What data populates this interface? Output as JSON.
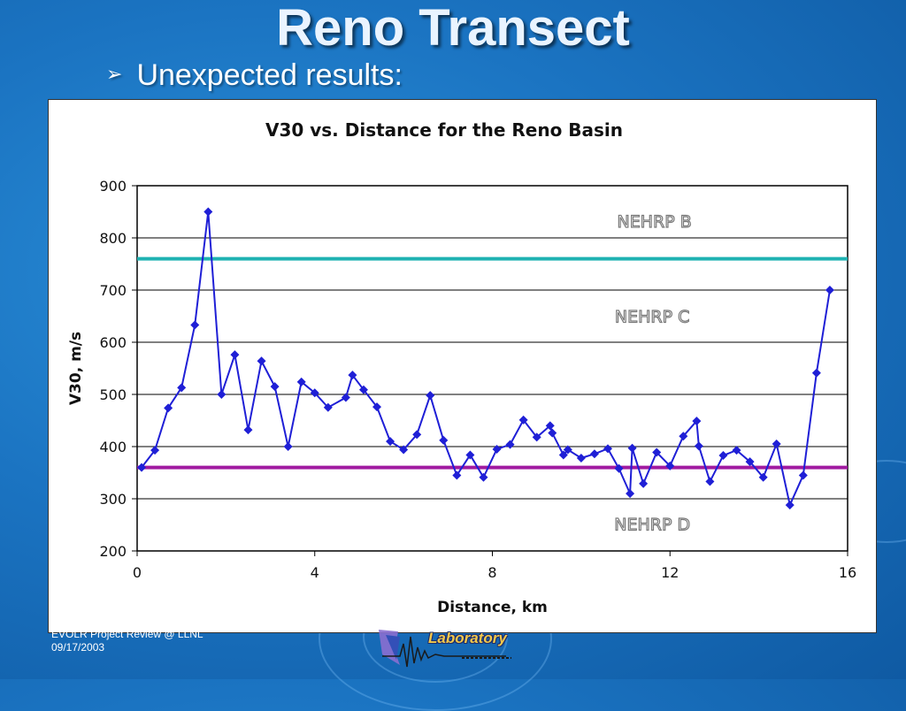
{
  "slide": {
    "title": "Reno Transect",
    "bullet": "Unexpected results:",
    "footer_line1": "EVOLR Project Review @ LLNL",
    "footer_line2": "09/17/2003",
    "logo_text": "Laboratory"
  },
  "colors": {
    "series": "#1f1fd6",
    "nehrp_b_c_line": "#1fb2b2",
    "nehrp_c_d_line": "#a01aa0",
    "zone_label": "#7a7a7a"
  },
  "chart_data": {
    "type": "line",
    "title": "V30 vs. Distance for the Reno Basin",
    "xlabel": "Distance, km",
    "ylabel": "V30, m/s",
    "xlim": [
      0,
      16
    ],
    "ylim": [
      200,
      900
    ],
    "xticks": [
      0,
      4,
      8,
      12,
      16
    ],
    "yticks": [
      200,
      300,
      400,
      500,
      600,
      700,
      800,
      900
    ],
    "grid": "horizontal",
    "series": [
      {
        "x": [
          0.1,
          0.4,
          0.7,
          1.0,
          1.3,
          1.6,
          1.9,
          2.2,
          2.5,
          2.8,
          3.1,
          3.4,
          3.7,
          4.0,
          4.3,
          4.7,
          4.85,
          5.1,
          5.4,
          5.7,
          6.0,
          6.3,
          6.6,
          6.9,
          7.2,
          7.5,
          7.8,
          8.1,
          8.4,
          8.7,
          9.0,
          9.3,
          9.35,
          9.6,
          9.7,
          10.0,
          10.3,
          10.6,
          10.85,
          11.1,
          11.15,
          11.4,
          11.7,
          12.0,
          12.3,
          12.6,
          12.65,
          12.9,
          13.2,
          13.5,
          13.8,
          14.1,
          14.4,
          14.7,
          15.0,
          15.3,
          15.6
        ],
        "values": [
          360,
          393,
          474,
          513,
          633,
          850,
          500,
          576,
          432,
          564,
          515,
          400,
          524,
          503,
          475,
          494,
          537,
          509,
          476,
          410,
          394,
          423,
          498,
          412,
          345,
          384,
          341,
          395,
          404,
          451,
          418,
          440,
          426,
          384,
          394,
          378,
          386,
          396,
          358,
          310,
          397,
          329,
          389,
          363,
          420,
          449,
          401,
          333,
          383,
          393,
          371,
          341,
          405,
          288,
          345,
          541,
          700
        ]
      }
    ],
    "reference_lines": [
      {
        "y": 760,
        "name": "NEHRP B/C boundary"
      },
      {
        "y": 360,
        "name": "NEHRP C/D boundary"
      }
    ],
    "zone_labels": [
      {
        "text": "NEHRP B",
        "x": 11.65,
        "y": 820
      },
      {
        "text": "NEHRP C",
        "x": 11.6,
        "y": 638
      },
      {
        "text": "NEHRP D",
        "x": 11.6,
        "y": 240
      }
    ]
  }
}
